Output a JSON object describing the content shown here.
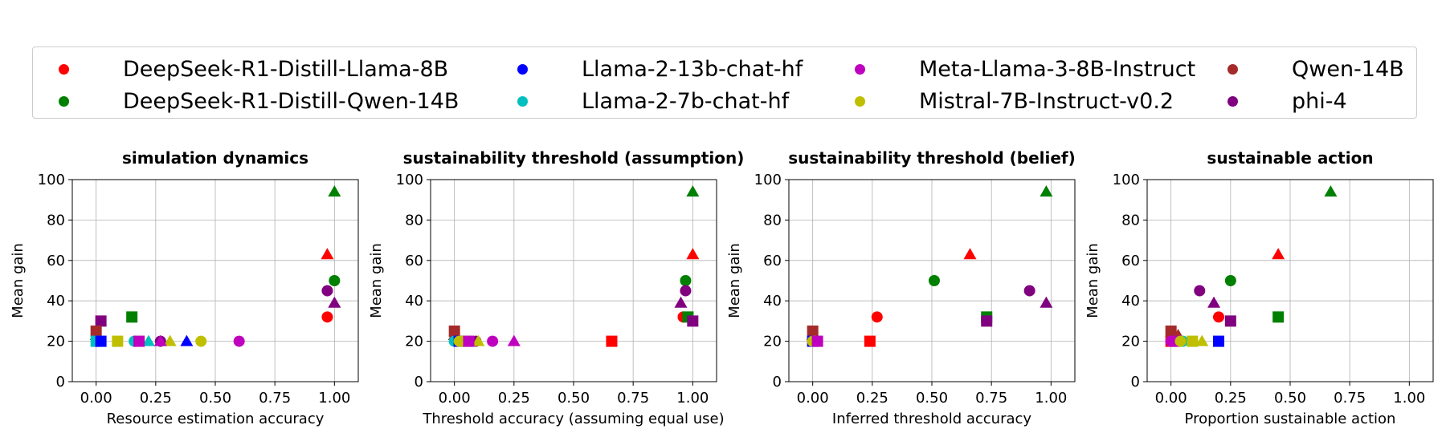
{
  "legend": [
    {
      "name": "DeepSeek-R1-Distill-Llama-8B",
      "color": "#ff0000"
    },
    {
      "name": "DeepSeek-R1-Distill-Qwen-14B",
      "color": "#008000"
    },
    {
      "name": "Llama-2-13b-chat-hf",
      "color": "#0000ff"
    },
    {
      "name": "Llama-2-7b-chat-hf",
      "color": "#00bfbf"
    },
    {
      "name": "Meta-Llama-3-8B-Instruct",
      "color": "#bf00bf"
    },
    {
      "name": "Mistral-7B-Instruct-v0.2",
      "color": "#bfbf00"
    },
    {
      "name": "Qwen-14B",
      "color": "#a52a2a"
    },
    {
      "name": "phi-4",
      "color": "#800080"
    }
  ],
  "chart_data": [
    {
      "type": "scatter",
      "title": "simulation dynamics",
      "xlabel": "Resource estimation accuracy",
      "ylabel": "Mean gain",
      "xlim": [
        -0.1,
        1.1
      ],
      "ylim": [
        0,
        100
      ],
      "xticks": [
        "0.00",
        "0.25",
        "0.50",
        "0.75",
        "1.00"
      ],
      "yticks": [
        "0",
        "20",
        "40",
        "60",
        "80",
        "100"
      ],
      "grid": true,
      "points": [
        {
          "model": "DeepSeek-R1-Distill-Llama-8B",
          "marker": "circle",
          "x": 0.97,
          "y": 32
        },
        {
          "model": "DeepSeek-R1-Distill-Llama-8B",
          "marker": "triangle",
          "x": 0.97,
          "y": 63
        },
        {
          "model": "DeepSeek-R1-Distill-Qwen-14B",
          "marker": "circle",
          "x": 1.0,
          "y": 50
        },
        {
          "model": "DeepSeek-R1-Distill-Qwen-14B",
          "marker": "triangle",
          "x": 1.0,
          "y": 94
        },
        {
          "model": "DeepSeek-R1-Distill-Qwen-14B",
          "marker": "square",
          "x": 0.15,
          "y": 32
        },
        {
          "model": "phi-4",
          "marker": "circle",
          "x": 0.97,
          "y": 45
        },
        {
          "model": "phi-4",
          "marker": "triangle",
          "x": 1.0,
          "y": 39
        },
        {
          "model": "phi-4",
          "marker": "square",
          "x": 0.02,
          "y": 30
        },
        {
          "model": "phi-4",
          "marker": "circle",
          "x": 0.27,
          "y": 20
        },
        {
          "model": "Qwen-14B",
          "marker": "square",
          "x": 0.0,
          "y": 25
        },
        {
          "model": "Qwen-14B",
          "marker": "triangle",
          "x": 0.0,
          "y": 23
        },
        {
          "model": "Llama-2-7b-chat-hf",
          "marker": "square",
          "x": 0.0,
          "y": 20
        },
        {
          "model": "Llama-2-7b-chat-hf",
          "marker": "circle",
          "x": 0.16,
          "y": 20
        },
        {
          "model": "Llama-2-7b-chat-hf",
          "marker": "triangle",
          "x": 0.22,
          "y": 20
        },
        {
          "model": "Llama-2-13b-chat-hf",
          "marker": "square",
          "x": 0.02,
          "y": 20
        },
        {
          "model": "Llama-2-13b-chat-hf",
          "marker": "triangle",
          "x": 0.38,
          "y": 20
        },
        {
          "model": "Mistral-7B-Instruct-v0.2",
          "marker": "square",
          "x": 0.09,
          "y": 20
        },
        {
          "model": "Mistral-7B-Instruct-v0.2",
          "marker": "triangle",
          "x": 0.31,
          "y": 20
        },
        {
          "model": "Mistral-7B-Instruct-v0.2",
          "marker": "circle",
          "x": 0.44,
          "y": 20
        },
        {
          "model": "Meta-Llama-3-8B-Instruct",
          "marker": "square",
          "x": 0.18,
          "y": 20
        },
        {
          "model": "Meta-Llama-3-8B-Instruct",
          "marker": "triangle",
          "x": 0.27,
          "y": 20
        },
        {
          "model": "Meta-Llama-3-8B-Instruct",
          "marker": "circle",
          "x": 0.6,
          "y": 20
        }
      ]
    },
    {
      "type": "scatter",
      "title": "sustainability threshold (assumption)",
      "xlabel": "Threshold accuracy (assuming equal use)",
      "ylabel": "Mean gain",
      "xlim": [
        -0.1,
        1.1
      ],
      "ylim": [
        0,
        100
      ],
      "xticks": [
        "0.00",
        "0.25",
        "0.50",
        "0.75",
        "1.00"
      ],
      "yticks": [
        "0",
        "20",
        "40",
        "60",
        "80",
        "100"
      ],
      "grid": true,
      "points": [
        {
          "model": "DeepSeek-R1-Distill-Llama-8B",
          "marker": "circle",
          "x": 0.96,
          "y": 32
        },
        {
          "model": "DeepSeek-R1-Distill-Llama-8B",
          "marker": "triangle",
          "x": 1.0,
          "y": 63
        },
        {
          "model": "DeepSeek-R1-Distill-Llama-8B",
          "marker": "square",
          "x": 0.66,
          "y": 20
        },
        {
          "model": "DeepSeek-R1-Distill-Qwen-14B",
          "marker": "circle",
          "x": 0.97,
          "y": 50
        },
        {
          "model": "DeepSeek-R1-Distill-Qwen-14B",
          "marker": "triangle",
          "x": 1.0,
          "y": 94
        },
        {
          "model": "DeepSeek-R1-Distill-Qwen-14B",
          "marker": "square",
          "x": 0.98,
          "y": 32
        },
        {
          "model": "phi-4",
          "marker": "circle",
          "x": 0.97,
          "y": 45
        },
        {
          "model": "phi-4",
          "marker": "triangle",
          "x": 0.95,
          "y": 39
        },
        {
          "model": "phi-4",
          "marker": "square",
          "x": 1.0,
          "y": 30
        },
        {
          "model": "phi-4",
          "marker": "circle",
          "x": 0.09,
          "y": 20
        },
        {
          "model": "Qwen-14B",
          "marker": "square",
          "x": 0.0,
          "y": 25
        },
        {
          "model": "Qwen-14B",
          "marker": "triangle",
          "x": 0.0,
          "y": 23
        },
        {
          "model": "Llama-2-7b-chat-hf",
          "marker": "circle",
          "x": 0.0,
          "y": 20
        },
        {
          "model": "Llama-2-13b-chat-hf",
          "marker": "square",
          "x": 0.02,
          "y": 20
        },
        {
          "model": "Mistral-7B-Instruct-v0.2",
          "marker": "circle",
          "x": 0.02,
          "y": 20
        },
        {
          "model": "Mistral-7B-Instruct-v0.2",
          "marker": "square",
          "x": 0.05,
          "y": 20
        },
        {
          "model": "Mistral-7B-Instruct-v0.2",
          "marker": "triangle",
          "x": 0.1,
          "y": 20
        },
        {
          "model": "Meta-Llama-3-8B-Instruct",
          "marker": "square",
          "x": 0.06,
          "y": 20
        },
        {
          "model": "Meta-Llama-3-8B-Instruct",
          "marker": "circle",
          "x": 0.16,
          "y": 20
        },
        {
          "model": "Meta-Llama-3-8B-Instruct",
          "marker": "triangle",
          "x": 0.25,
          "y": 20
        }
      ]
    },
    {
      "type": "scatter",
      "title": "sustainability threshold (belief)",
      "xlabel": "Inferred threshold accuracy",
      "ylabel": "Mean gain",
      "xlim": [
        -0.1,
        1.1
      ],
      "ylim": [
        0,
        100
      ],
      "xticks": [
        "0.00",
        "0.25",
        "0.50",
        "0.75",
        "1.00"
      ],
      "yticks": [
        "0",
        "20",
        "40",
        "60",
        "80",
        "100"
      ],
      "grid": true,
      "points": [
        {
          "model": "DeepSeek-R1-Distill-Llama-8B",
          "marker": "circle",
          "x": 0.27,
          "y": 32
        },
        {
          "model": "DeepSeek-R1-Distill-Llama-8B",
          "marker": "triangle",
          "x": 0.66,
          "y": 63
        },
        {
          "model": "DeepSeek-R1-Distill-Llama-8B",
          "marker": "square",
          "x": 0.24,
          "y": 20
        },
        {
          "model": "DeepSeek-R1-Distill-Qwen-14B",
          "marker": "circle",
          "x": 0.51,
          "y": 50
        },
        {
          "model": "DeepSeek-R1-Distill-Qwen-14B",
          "marker": "triangle",
          "x": 0.98,
          "y": 94
        },
        {
          "model": "DeepSeek-R1-Distill-Qwen-14B",
          "marker": "square",
          "x": 0.73,
          "y": 32
        },
        {
          "model": "phi-4",
          "marker": "circle",
          "x": 0.91,
          "y": 45
        },
        {
          "model": "phi-4",
          "marker": "triangle",
          "x": 0.98,
          "y": 39
        },
        {
          "model": "phi-4",
          "marker": "square",
          "x": 0.73,
          "y": 30
        },
        {
          "model": "phi-4",
          "marker": "circle",
          "x": 0.02,
          "y": 20
        },
        {
          "model": "Qwen-14B",
          "marker": "square",
          "x": 0.0,
          "y": 25
        },
        {
          "model": "Qwen-14B",
          "marker": "triangle",
          "x": 0.0,
          "y": 23
        },
        {
          "model": "Llama-2-7b-chat-hf",
          "marker": "circle",
          "x": 0.0,
          "y": 20
        },
        {
          "model": "Llama-2-13b-chat-hf",
          "marker": "square",
          "x": 0.0,
          "y": 20
        },
        {
          "model": "Mistral-7B-Instruct-v0.2",
          "marker": "circle",
          "x": 0.0,
          "y": 20
        },
        {
          "model": "Mistral-7B-Instruct-v0.2",
          "marker": "triangle",
          "x": 0.01,
          "y": 20
        },
        {
          "model": "Meta-Llama-3-8B-Instruct",
          "marker": "square",
          "x": 0.02,
          "y": 20
        }
      ]
    },
    {
      "type": "scatter",
      "title": "sustainable action",
      "xlabel": "Proportion sustainable action",
      "ylabel": "Mean gain",
      "xlim": [
        -0.1,
        1.1
      ],
      "ylim": [
        0,
        100
      ],
      "xticks": [
        "0.00",
        "0.25",
        "0.50",
        "0.75",
        "1.00"
      ],
      "yticks": [
        "0",
        "20",
        "40",
        "60",
        "80",
        "100"
      ],
      "grid": true,
      "points": [
        {
          "model": "DeepSeek-R1-Distill-Llama-8B",
          "marker": "circle",
          "x": 0.2,
          "y": 32
        },
        {
          "model": "DeepSeek-R1-Distill-Llama-8B",
          "marker": "triangle",
          "x": 0.45,
          "y": 63
        },
        {
          "model": "DeepSeek-R1-Distill-Llama-8B",
          "marker": "square",
          "x": 0.0,
          "y": 20
        },
        {
          "model": "DeepSeek-R1-Distill-Qwen-14B",
          "marker": "circle",
          "x": 0.25,
          "y": 50
        },
        {
          "model": "DeepSeek-R1-Distill-Qwen-14B",
          "marker": "triangle",
          "x": 0.67,
          "y": 94
        },
        {
          "model": "DeepSeek-R1-Distill-Qwen-14B",
          "marker": "square",
          "x": 0.45,
          "y": 32
        },
        {
          "model": "phi-4",
          "marker": "circle",
          "x": 0.12,
          "y": 45
        },
        {
          "model": "phi-4",
          "marker": "triangle",
          "x": 0.18,
          "y": 39
        },
        {
          "model": "phi-4",
          "marker": "square",
          "x": 0.25,
          "y": 30
        },
        {
          "model": "Qwen-14B",
          "marker": "square",
          "x": 0.0,
          "y": 25
        },
        {
          "model": "Qwen-14B",
          "marker": "triangle",
          "x": 0.03,
          "y": 23
        },
        {
          "model": "Meta-Llama-3-8B-Instruct",
          "marker": "circle",
          "x": 0.0,
          "y": 20
        },
        {
          "model": "Meta-Llama-3-8B-Instruct",
          "marker": "square",
          "x": 0.02,
          "y": 20
        },
        {
          "model": "Llama-2-7b-chat-hf",
          "marker": "circle",
          "x": 0.05,
          "y": 20
        },
        {
          "model": "Mistral-7B-Instruct-v0.2",
          "marker": "circle",
          "x": 0.04,
          "y": 20
        },
        {
          "model": "Mistral-7B-Instruct-v0.2",
          "marker": "square",
          "x": 0.09,
          "y": 20
        },
        {
          "model": "Mistral-7B-Instruct-v0.2",
          "marker": "triangle",
          "x": 0.13,
          "y": 20
        },
        {
          "model": "Llama-2-13b-chat-hf",
          "marker": "square",
          "x": 0.2,
          "y": 20
        }
      ]
    }
  ]
}
